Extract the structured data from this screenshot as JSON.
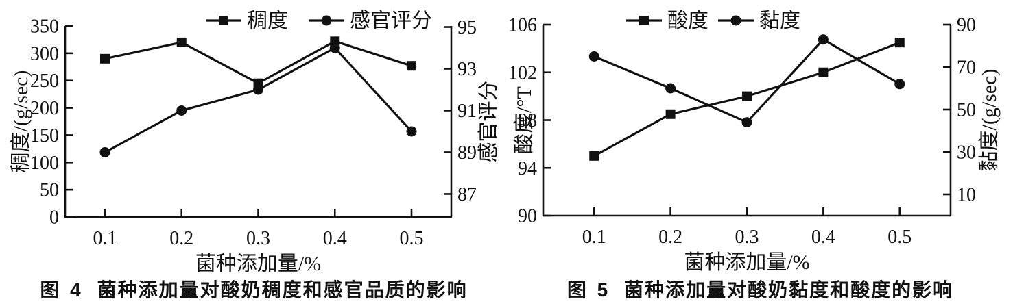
{
  "colors": {
    "ink": "#111111",
    "background": "#ffffff"
  },
  "figures": [
    {
      "caption_fig": "图 4",
      "caption_text": "菌种添加量对酸奶稠度和感官品质的影响"
    },
    {
      "caption_fig": "图 5",
      "caption_text": "菌种添加量对酸奶黏度和酸度的影响"
    }
  ],
  "chart_data": [
    {
      "type": "line",
      "title": "",
      "x_categories": [
        "0.1",
        "0.2",
        "0.3",
        "0.4",
        "0.5"
      ],
      "xlabel": "菌种添加量/%",
      "left_axis": {
        "label": "稠度/(g/sec)",
        "min": 0,
        "max": 350,
        "ticks": [
          0,
          50,
          100,
          150,
          200,
          250,
          300,
          350
        ]
      },
      "right_axis": {
        "label": "感官评分",
        "min": 85.9,
        "max": 95.05,
        "ticks": [
          87,
          89,
          91,
          93,
          95
        ]
      },
      "series": [
        {
          "key": "consistency",
          "name": "稠度",
          "axis": "left",
          "marker": "square",
          "values": [
            290,
            320,
            245,
            322,
            277
          ]
        },
        {
          "key": "sensory-score",
          "name": "感官评分",
          "axis": "right",
          "marker": "circle",
          "values": [
            89,
            91,
            92,
            94,
            90
          ]
        }
      ],
      "legend_position": "top-center",
      "grid": false
    },
    {
      "type": "line",
      "title": "",
      "x_categories": [
        "0.1",
        "0.2",
        "0.3",
        "0.4",
        "0.5"
      ],
      "xlabel": "菌种添加量/%",
      "left_axis": {
        "label": "酸度/°T",
        "min": 90,
        "max": 106,
        "ticks": [
          90,
          94,
          98,
          102,
          106
        ]
      },
      "right_axis": {
        "label": "黏度/(g/sec)",
        "min": 0,
        "max": 90,
        "ticks": [
          10,
          30,
          50,
          70,
          90
        ]
      },
      "series": [
        {
          "key": "acidity",
          "name": "酸度",
          "axis": "left",
          "marker": "square",
          "values": [
            95,
            98.5,
            100,
            102,
            104.5
          ]
        },
        {
          "key": "viscosity",
          "name": "黏度",
          "axis": "right",
          "marker": "circle",
          "values": [
            75,
            60,
            44,
            83,
            62
          ]
        }
      ],
      "legend_position": "top-center",
      "grid": false
    }
  ]
}
